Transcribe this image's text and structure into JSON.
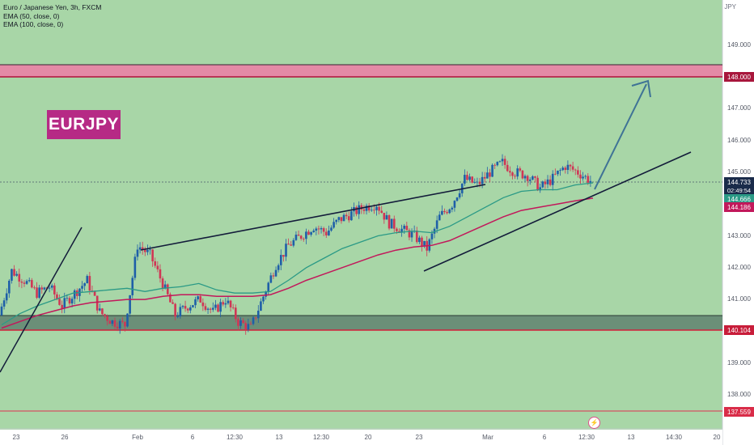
{
  "legend": {
    "title": "Euro / Japanese Yen, 3h, FXCM",
    "ema50": "EMA (50, close, 0)",
    "ema100": "EMA (100, close, 0)"
  },
  "badge": "EURJPY",
  "unit": "JPY",
  "colors": {
    "background": "#a8d6a7",
    "candle_up": "#1e5fa8",
    "candle_down": "#d03655",
    "ema50": "#2b9a86",
    "ema100": "#c2185b",
    "zone_top": "#e48aa6",
    "zone_bottom": "#6b8f78",
    "trendline": "#131c3a",
    "arrow": "#3f7396"
  },
  "price_tags": {
    "resistance": "148.000",
    "last": "144.733",
    "countdown": "02:49:54",
    "ema50": "144.666",
    "ema100": "144.186",
    "support": "140.104",
    "low_level": "137.559"
  },
  "y_ticks": [
    "149.000",
    "147.000",
    "146.000",
    "145.000",
    "143.000",
    "142.000",
    "141.000",
    "139.000",
    "138.000"
  ],
  "x_ticks": [
    "23",
    "26",
    "Feb",
    "6",
    "12:30",
    "13",
    "12:30",
    "20",
    "23",
    "Mar",
    "6",
    "12:30",
    "13",
    "14:30",
    "20"
  ],
  "chart_data": {
    "type": "candlestick",
    "title": "Euro / Japanese Yen, 3h, FXCM",
    "ylabel": "JPY",
    "ylim": [
      137.0,
      150.2
    ],
    "grid": false,
    "horizontal_levels": [
      148.0,
      140.104,
      137.559
    ],
    "zones": [
      {
        "from": 147.95,
        "to": 148.35
      },
      {
        "from": 140.1,
        "to": 140.55
      }
    ],
    "series": [
      {
        "name": "EMA (50, close, 0)",
        "values": [
          140.2,
          140.55,
          140.8,
          141.0,
          141.2,
          141.25,
          141.3,
          141.35,
          141.25,
          141.35,
          141.4,
          141.5,
          141.3,
          141.2,
          141.2,
          141.25,
          141.6,
          142.0,
          142.3,
          142.6,
          142.8,
          143.0,
          143.1,
          143.15,
          143.1,
          143.3,
          143.6,
          143.9,
          144.2,
          144.4,
          144.45,
          144.45,
          144.6,
          144.666
        ]
      },
      {
        "name": "EMA (100, close, 0)",
        "values": [
          140.1,
          140.3,
          140.5,
          140.65,
          140.8,
          140.9,
          140.95,
          141.0,
          141.0,
          141.1,
          141.15,
          141.15,
          141.1,
          141.1,
          141.1,
          141.15,
          141.35,
          141.6,
          141.8,
          142.0,
          142.2,
          142.4,
          142.55,
          142.65,
          142.7,
          142.85,
          143.1,
          143.35,
          143.6,
          143.8,
          143.9,
          144.0,
          144.1,
          144.186
        ]
      }
    ],
    "candles_close": [
      140.5,
      141.9,
      141.6,
      141.2,
      141.4,
      140.8,
      141.2,
      141.6,
      140.6,
      140.3,
      140.2,
      142.7,
      142.4,
      141.5,
      140.5,
      140.8,
      141.0,
      140.6,
      141.0,
      140.3,
      140.1,
      141.1,
      142.1,
      142.7,
      143.0,
      143.3,
      143.1,
      143.5,
      143.7,
      143.9,
      144.0,
      143.4,
      143.2,
      143.0,
      142.6,
      143.6,
      144.0,
      144.8,
      144.6,
      145.0,
      145.3,
      145.0,
      144.9,
      144.5,
      144.8,
      145.2,
      145.0,
      144.733
    ]
  }
}
